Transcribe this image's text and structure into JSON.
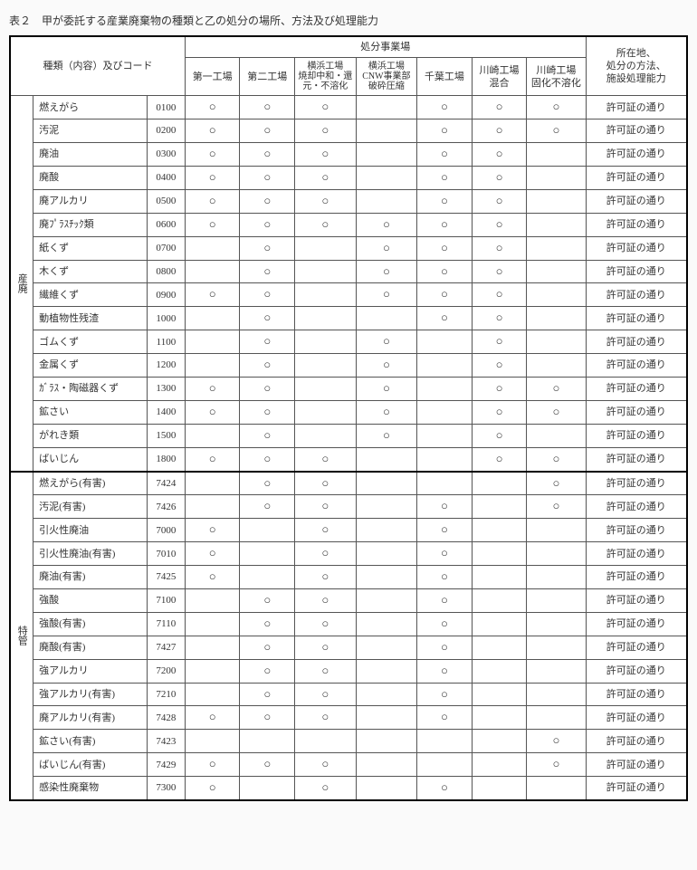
{
  "title": "表２　甲が委託する産業廃棄物の種類と乙の処分の場所、方法及び処理能力",
  "headers": {
    "type_code": "種類（内容）及びコード",
    "disposal_site": "処分事業場",
    "remarks": "所在地、\n処分の方法、\n施設処理能力",
    "plants": [
      "第一工場",
      "第二工場",
      "横浜工場\n焼却中和・還\n元・不溶化",
      "横浜工場\nCNW事業部\n破砕圧縮",
      "千葉工場",
      "川崎工場\n混合",
      "川崎工場\n固化不溶化"
    ]
  },
  "groups": [
    {
      "label": "産廃",
      "rows": [
        {
          "name": "燃えがら",
          "code": "0100",
          "marks": [
            "○",
            "○",
            "○",
            "",
            "○",
            "○",
            "○"
          ],
          "remark": "許可証の通り"
        },
        {
          "name": "汚泥",
          "code": "0200",
          "marks": [
            "○",
            "○",
            "○",
            "",
            "○",
            "○",
            "○"
          ],
          "remark": "許可証の通り"
        },
        {
          "name": "廃油",
          "code": "0300",
          "marks": [
            "○",
            "○",
            "○",
            "",
            "○",
            "○",
            ""
          ],
          "remark": "許可証の通り"
        },
        {
          "name": "廃酸",
          "code": "0400",
          "marks": [
            "○",
            "○",
            "○",
            "",
            "○",
            "○",
            ""
          ],
          "remark": "許可証の通り"
        },
        {
          "name": "廃アルカリ",
          "code": "0500",
          "marks": [
            "○",
            "○",
            "○",
            "",
            "○",
            "○",
            ""
          ],
          "remark": "許可証の通り"
        },
        {
          "name": "廃ﾌﾟﾗｽﾁｯｸ類",
          "code": "0600",
          "marks": [
            "○",
            "○",
            "○",
            "○",
            "○",
            "○",
            ""
          ],
          "remark": "許可証の通り"
        },
        {
          "name": "紙くず",
          "code": "0700",
          "marks": [
            "",
            "○",
            "",
            "○",
            "○",
            "○",
            ""
          ],
          "remark": "許可証の通り"
        },
        {
          "name": "木くず",
          "code": "0800",
          "marks": [
            "",
            "○",
            "",
            "○",
            "○",
            "○",
            ""
          ],
          "remark": "許可証の通り"
        },
        {
          "name": "繊維くず",
          "code": "0900",
          "marks": [
            "○",
            "○",
            "",
            "○",
            "○",
            "○",
            ""
          ],
          "remark": "許可証の通り"
        },
        {
          "name": "動植物性残渣",
          "code": "1000",
          "marks": [
            "",
            "○",
            "",
            "",
            "○",
            "○",
            ""
          ],
          "remark": "許可証の通り"
        },
        {
          "name": "ゴムくず",
          "code": "1100",
          "marks": [
            "",
            "○",
            "",
            "○",
            "",
            "○",
            ""
          ],
          "remark": "許可証の通り"
        },
        {
          "name": "金属くず",
          "code": "1200",
          "marks": [
            "",
            "○",
            "",
            "○",
            "",
            "○",
            ""
          ],
          "remark": "許可証の通り"
        },
        {
          "name": "ｶﾞﾗｽ・陶磁器くず",
          "code": "1300",
          "marks": [
            "○",
            "○",
            "",
            "○",
            "",
            "○",
            "○"
          ],
          "remark": "許可証の通り"
        },
        {
          "name": "鉱さい",
          "code": "1400",
          "marks": [
            "○",
            "○",
            "",
            "○",
            "",
            "○",
            "○"
          ],
          "remark": "許可証の通り"
        },
        {
          "name": "がれき類",
          "code": "1500",
          "marks": [
            "",
            "○",
            "",
            "○",
            "",
            "○",
            ""
          ],
          "remark": "許可証の通り"
        },
        {
          "name": "ばいじん",
          "code": "1800",
          "marks": [
            "○",
            "○",
            "○",
            "",
            "",
            "○",
            "○"
          ],
          "remark": "許可証の通り"
        }
      ]
    },
    {
      "label": "特管",
      "rows": [
        {
          "name": "燃えがら(有害)",
          "code": "7424",
          "marks": [
            "",
            "○",
            "○",
            "",
            "",
            "",
            "○"
          ],
          "remark": "許可証の通り"
        },
        {
          "name": "汚泥(有害)",
          "code": "7426",
          "marks": [
            "",
            "○",
            "○",
            "",
            "○",
            "",
            "○"
          ],
          "remark": "許可証の通り"
        },
        {
          "name": "引火性廃油",
          "code": "7000",
          "marks": [
            "○",
            "",
            "○",
            "",
            "○",
            "",
            ""
          ],
          "remark": "許可証の通り"
        },
        {
          "name": "引火性廃油(有害)",
          "code": "7010",
          "marks": [
            "○",
            "",
            "○",
            "",
            "○",
            "",
            ""
          ],
          "remark": "許可証の通り"
        },
        {
          "name": "廃油(有害)",
          "code": "7425",
          "marks": [
            "○",
            "",
            "○",
            "",
            "○",
            "",
            ""
          ],
          "remark": "許可証の通り"
        },
        {
          "name": "強酸",
          "code": "7100",
          "marks": [
            "",
            "○",
            "○",
            "",
            "○",
            "",
            ""
          ],
          "remark": "許可証の通り"
        },
        {
          "name": "強酸(有害)",
          "code": "7110",
          "marks": [
            "",
            "○",
            "○",
            "",
            "○",
            "",
            ""
          ],
          "remark": "許可証の通り"
        },
        {
          "name": "廃酸(有害)",
          "code": "7427",
          "marks": [
            "",
            "○",
            "○",
            "",
            "○",
            "",
            ""
          ],
          "remark": "許可証の通り"
        },
        {
          "name": "強アルカリ",
          "code": "7200",
          "marks": [
            "",
            "○",
            "○",
            "",
            "○",
            "",
            ""
          ],
          "remark": "許可証の通り"
        },
        {
          "name": "強アルカリ(有害)",
          "code": "7210",
          "marks": [
            "",
            "○",
            "○",
            "",
            "○",
            "",
            ""
          ],
          "remark": "許可証の通り"
        },
        {
          "name": "廃アルカリ(有害)",
          "code": "7428",
          "marks": [
            "○",
            "○",
            "○",
            "",
            "○",
            "",
            ""
          ],
          "remark": "許可証の通り"
        },
        {
          "name": "鉱さい(有害)",
          "code": "7423",
          "marks": [
            "",
            "",
            "",
            "",
            "",
            "",
            "○"
          ],
          "remark": "許可証の通り"
        },
        {
          "name": "ばいじん(有害)",
          "code": "7429",
          "marks": [
            "○",
            "○",
            "○",
            "",
            "",
            "",
            "○"
          ],
          "remark": "許可証の通り"
        },
        {
          "name": "感染性廃棄物",
          "code": "7300",
          "marks": [
            "○",
            "",
            "○",
            "",
            "○",
            "",
            ""
          ],
          "remark": "許可証の通り"
        }
      ]
    }
  ],
  "style": {
    "circle_char": "○",
    "bg": "#fafafa",
    "cell_bg": "#ffffff",
    "border": "#555555",
    "outer_border": "#000000",
    "text_color": "#333333"
  }
}
